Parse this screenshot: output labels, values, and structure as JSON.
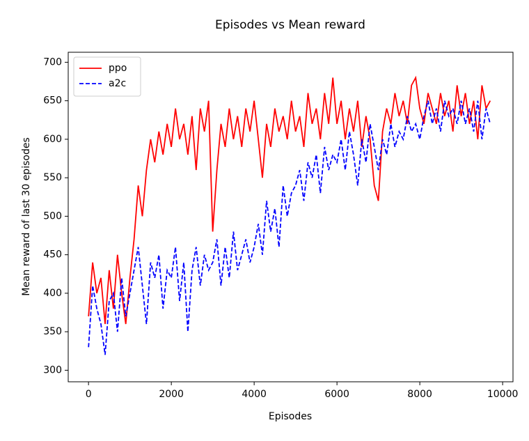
{
  "chart_data": {
    "type": "line",
    "title": "Episodes vs Mean reward",
    "xlabel": "Episodes",
    "ylabel": "Mean reward of last 30 episodes",
    "x": [
      0,
      100,
      200,
      300,
      400,
      500,
      600,
      700,
      800,
      900,
      1000,
      1100,
      1200,
      1300,
      1400,
      1500,
      1600,
      1700,
      1800,
      1900,
      2000,
      2100,
      2200,
      2300,
      2400,
      2500,
      2600,
      2700,
      2800,
      2900,
      3000,
      3100,
      3200,
      3300,
      3400,
      3500,
      3600,
      3700,
      3800,
      3900,
      4000,
      4100,
      4200,
      4300,
      4400,
      4500,
      4600,
      4700,
      4800,
      4900,
      5000,
      5100,
      5200,
      5300,
      5400,
      5500,
      5600,
      5700,
      5800,
      5900,
      6000,
      6100,
      6200,
      6300,
      6400,
      6500,
      6600,
      6700,
      6800,
      6900,
      7000,
      7100,
      7200,
      7300,
      7400,
      7500,
      7600,
      7700,
      7800,
      7900,
      8000,
      8100,
      8200,
      8300,
      8400,
      8500,
      8600,
      8700,
      8800,
      8900,
      9000,
      9100,
      9200,
      9300,
      9400,
      9500,
      9600,
      9700
    ],
    "series": [
      {
        "name": "ppo",
        "color": "#ff0000",
        "dash": "solid",
        "values": [
          370,
          440,
          400,
          420,
          360,
          430,
          380,
          450,
          400,
          360,
          420,
          470,
          540,
          500,
          560,
          600,
          570,
          610,
          580,
          620,
          590,
          640,
          600,
          620,
          580,
          630,
          560,
          640,
          610,
          650,
          480,
          560,
          620,
          590,
          640,
          600,
          630,
          590,
          640,
          610,
          650,
          600,
          550,
          620,
          590,
          640,
          610,
          630,
          600,
          650,
          610,
          630,
          590,
          660,
          620,
          640,
          600,
          660,
          620,
          680,
          620,
          650,
          600,
          640,
          610,
          650,
          590,
          630,
          600,
          540,
          520,
          610,
          640,
          620,
          660,
          630,
          650,
          620,
          670,
          680,
          640,
          620,
          660,
          640,
          620,
          660,
          630,
          650,
          610,
          670,
          630,
          660,
          620,
          650,
          600,
          670,
          640,
          650
        ]
      },
      {
        "name": "a2c",
        "color": "#0000ff",
        "dash": "dashed",
        "values": [
          330,
          410,
          380,
          360,
          320,
          390,
          400,
          350,
          420,
          370,
          400,
          430,
          460,
          410,
          360,
          440,
          420,
          450,
          380,
          430,
          420,
          460,
          390,
          440,
          350,
          430,
          460,
          410,
          450,
          430,
          440,
          470,
          410,
          460,
          420,
          480,
          430,
          450,
          470,
          440,
          460,
          490,
          450,
          520,
          480,
          510,
          460,
          540,
          500,
          530,
          540,
          560,
          520,
          570,
          550,
          580,
          530,
          590,
          560,
          580,
          570,
          600,
          560,
          610,
          580,
          540,
          600,
          570,
          620,
          590,
          560,
          600,
          580,
          620,
          590,
          610,
          600,
          630,
          610,
          620,
          600,
          630,
          650,
          620,
          640,
          610,
          650,
          630,
          640,
          620,
          650,
          620,
          640,
          610,
          650,
          600,
          640,
          620
        ]
      }
    ],
    "xlim": [
      -490,
      10250
    ],
    "ylim": [
      285,
      713
    ],
    "xticks": [
      0,
      2000,
      4000,
      6000,
      8000,
      10000
    ],
    "yticks": [
      300,
      350,
      400,
      450,
      500,
      550,
      600,
      650,
      700
    ],
    "legend": "upper left",
    "grid": false
  }
}
